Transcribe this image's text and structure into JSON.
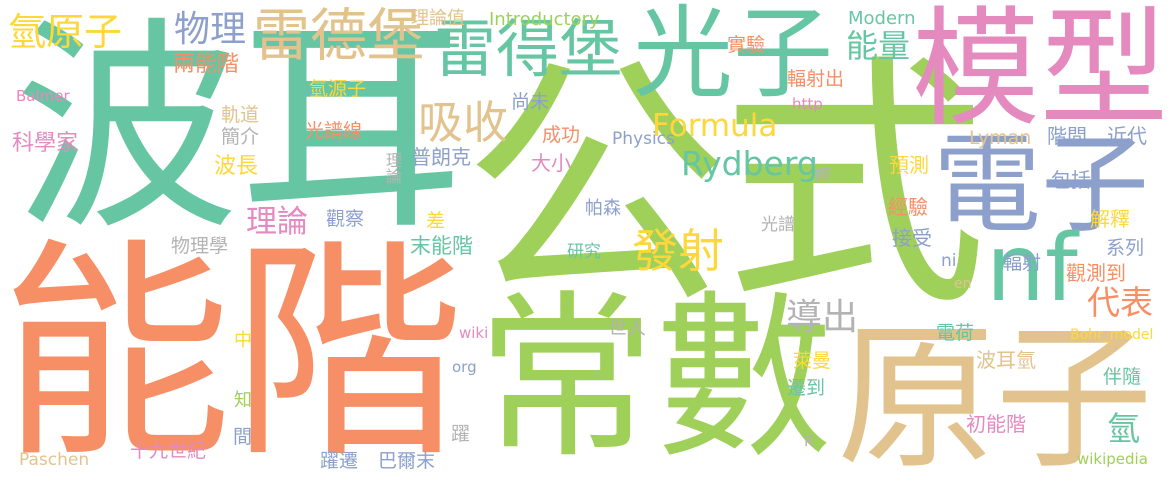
{
  "colors": {
    "background": "#ffffff",
    "green": "#9ed05a",
    "teal": "#66c6a3",
    "orange": "#f78f66",
    "blue": "#8da0cb",
    "pink": "#e48abf",
    "tan": "#e2c38e",
    "yellow": "#fed83a",
    "gray": "#b3b3b3"
  },
  "words": {
    "gongshi": "公式",
    "bo_er": "波耳",
    "nengjie": "能階",
    "changshu": "常數",
    "moxing": "模型",
    "yuanzi": "原子",
    "guangzi": "光子",
    "dianzi": "電子",
    "nf": "nf",
    "leidebao_1": "雷得堡",
    "leidebao_2": "雷德堡",
    "qingyuanzi": "氫原子",
    "wuli": "物理",
    "xishou": "吸收",
    "fashe": "發射",
    "rydberg": "Rydberg",
    "formula": "Formula",
    "nengliang": "能量",
    "lilun": "理論",
    "daochu": "導出",
    "daibiao": "代表",
    "qing": "氫",
    "lianengjie": "兩能階",
    "balmer": "Balmer",
    "kexuejia": "科學家",
    "zhidao": "軌道",
    "jianjie": "簡介",
    "bochang": "波長",
    "qingyuanzi2": "氫源子",
    "guangpuxian": "光譜線",
    "lilunzhi": "理論值",
    "introductory": "Introductory",
    "modern": "Modern",
    "shiyan": "實驗",
    "fushechu": "輻射出",
    "shangwei": "尚未",
    "http": "http",
    "chenggong": "成功",
    "physics": "Physics",
    "lyman": "Lyman",
    "jiejian": "階間",
    "jindai": "近代",
    "pulangke": "普朗克",
    "daxiao": "大小",
    "yuce": "預測",
    "yi": "譯",
    "baokuo": "包括",
    "jingyan": "經驗",
    "jieshi": "解釋",
    "guancha": "觀察",
    "pasen": "帕森",
    "guangpu": "光譜",
    "jieshou": "接受",
    "cha": "差",
    "monengjie": "末能階",
    "yanjiu": "研究",
    "xilie": "系列",
    "wulixue": "物理學",
    "ni": "ni",
    "fushe": "輻射",
    "guancedao": "觀測到",
    "en": "en",
    "wiki": "wiki",
    "shiren": "世人",
    "dianhe": "電荷",
    "bohr_model": "Bohr_model",
    "boerqing": "波耳氫",
    "org": "org",
    "laiman": "萊曼",
    "banshui": "伴隨",
    "qiandao": "遷到",
    "r": "R",
    "chunengjie": "初能階",
    "jian": "間",
    "shijiushiji": "十九世紀",
    "paschen": "Paschen",
    "yuejian": "躍遷",
    "baermo": "巴爾末",
    "yao": "躍",
    "wikipedia": "wikipedia",
    "zhong": "中",
    "zhi": "知",
    "lilun_v": "理論",
    "yue": "躍"
  }
}
